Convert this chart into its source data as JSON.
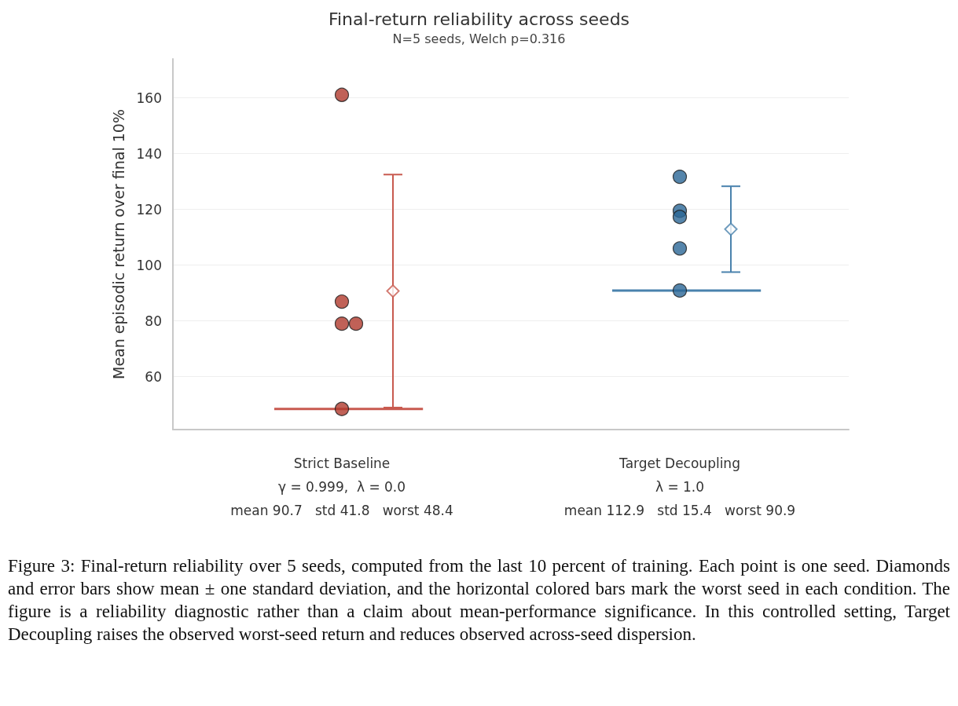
{
  "chart_data": {
    "type": "scatter",
    "title": "Final-return reliability across seeds",
    "subtitle": "N=5 seeds, Welch p=0.316",
    "ylabel": "Mean episodic return over final 10%",
    "categories": [
      "Strict Baseline\nγ = 0.999,  λ = 0.0\nmean 90.7   std 41.8   worst 48.4",
      "Target Decoupling\nλ = 1.0\nmean 112.9   std 15.4   worst 90.9"
    ],
    "series": [
      {
        "color": "#b0392d",
        "marker": "circle",
        "x": [
          "Strict Baseline\nγ = 0.999,  λ = 0.0\nmean 90.7   std 41.8   worst 48.4",
          "Strict Baseline\nγ = 0.999,  λ = 0.0\nmean 90.7   std 41.8   worst 48.4",
          "Strict Baseline\nγ = 0.999,  λ = 0.0\nmean 90.7   std 41.8   worst 48.4",
          "Strict Baseline\nγ = 0.999,  λ = 0.0\nmean 90.7   std 41.8   worst 48.4",
          "Strict Baseline\nγ = 0.999,  λ = 0.0\nmean 90.7   std 41.8   worst 48.4"
        ],
        "values": [
          161.1,
          86.9,
          79.0,
          79.0,
          48.4
        ]
      },
      {
        "color": "#2a6796",
        "marker": "circle",
        "x": [
          "Target Decoupling\nλ = 1.0\nmean 112.9   std 15.4   worst 90.9",
          "Target Decoupling\nλ = 1.0\nmean 112.9   std 15.4   worst 90.9",
          "Target Decoupling\nλ = 1.0\nmean 112.9   std 15.4   worst 90.9",
          "Target Decoupling\nλ = 1.0\nmean 112.9   std 15.4   worst 90.9",
          "Target Decoupling\nλ = 1.0\nmean 112.9   std 15.4   worst 90.9"
        ],
        "values": [
          131.7,
          119.5,
          117.3,
          106.0,
          90.9
        ]
      },
      {
        "marker": "diamond",
        "x": [
          "Strict Baseline\nγ = 0.999,  λ = 0.0\nmean 90.7   std 41.8   worst 48.4",
          "Target Decoupling\nλ = 1.0\nmean 112.9   std 15.4   worst 90.9"
        ],
        "values": [
          90.7,
          112.9
        ],
        "errors": [
          41.8,
          15.4
        ],
        "colors": [
          "#c85a4f",
          "#4a82ad"
        ]
      }
    ],
    "ref_lines": [
      {
        "axis": "y",
        "value": 48.4,
        "color": "#c85a4f"
      },
      {
        "axis": "y",
        "value": 90.9,
        "color": "#4a82ad"
      }
    ],
    "ylim": [
      41,
      174
    ],
    "yticks": [
      60,
      80,
      100,
      120,
      140,
      160
    ],
    "grid": "y",
    "annotations": [
      "Figure 3: Final-return reliability over 5 seeds, computed from the last 10 percent of training. Each point is one seed. Diamonds and error bars show mean ± one standard deviation, and the horizontal colored bars mark the worst seed in each condition. The figure is a reliability diagnostic rather than a claim about mean-performance significance. In this controlled setting, Target Decoupling raises the observed worst-seed return and reduces observed across-seed dispersion."
    ]
  }
}
